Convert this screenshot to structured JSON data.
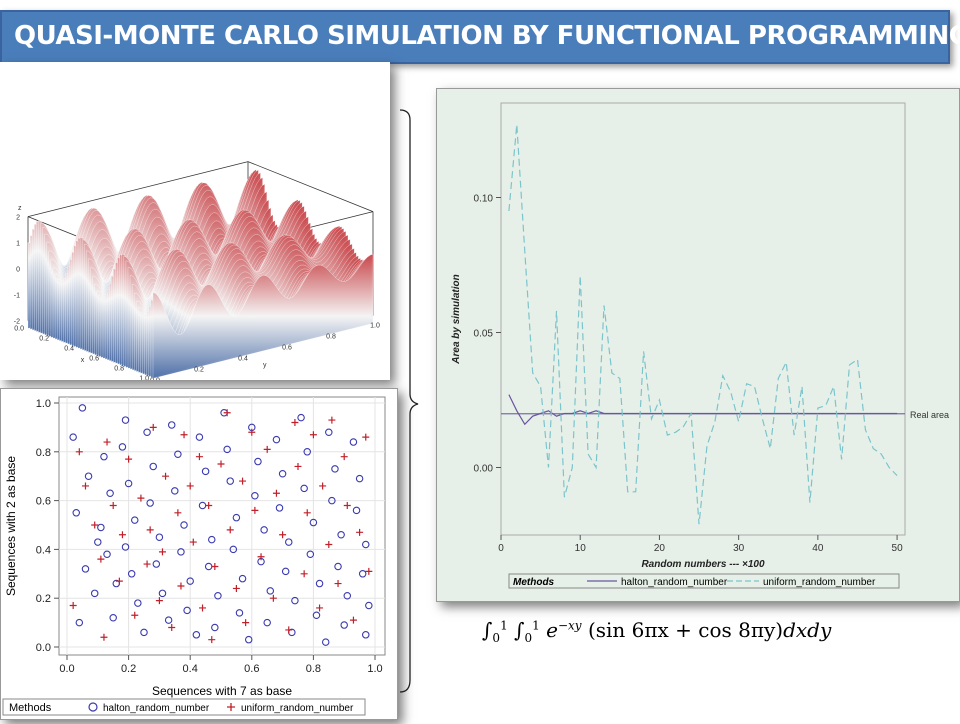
{
  "title": "QUASI-MONTE CARLO SIMULATION BY FUNCTIONAL PROGRAMMING",
  "formula_parts": {
    "lower": "0",
    "upper": "1",
    "exp_base": "e",
    "exp_power": "−xy",
    "body": "(sin 6πx + cos 8πy)",
    "tail": "dxdy"
  },
  "surface": {
    "z_label": "z",
    "x_label": "x",
    "y_label": "y",
    "z_ticks": [
      "2",
      "1",
      "0",
      "-1",
      "-2"
    ],
    "x_ticks": [
      "0.0",
      "0.2",
      "0.4",
      "0.6",
      "0.8",
      "1.0"
    ],
    "y_ticks": [
      "0.0",
      "0.2",
      "0.4",
      "0.6",
      "0.8",
      "1.0"
    ],
    "colors": {
      "high": "#c8464a",
      "mid": "#f4f4f4",
      "low": "#4e6fa8"
    }
  },
  "chart_data": [
    {
      "type": "scatter",
      "xlabel": "Sequences with 7 as base",
      "ylabel": "Sequences with 2 as base",
      "xlim": [
        0,
        1
      ],
      "ylim": [
        0,
        1
      ],
      "x_ticks": [
        "0.0",
        "0.2",
        "0.4",
        "0.6",
        "0.8",
        "1.0"
      ],
      "y_ticks": [
        "0.0",
        "0.2",
        "0.4",
        "0.6",
        "0.8",
        "1.0"
      ],
      "grid": true,
      "legend": {
        "title": "Methods",
        "placement": "bottom"
      },
      "series": [
        {
          "name": "halton_random_number",
          "marker": "circle",
          "color": "#3a3ab0",
          "points": [
            [
              0.05,
              0.98
            ],
            [
              0.02,
              0.86
            ],
            [
              0.07,
              0.7
            ],
            [
              0.03,
              0.55
            ],
            [
              0.1,
              0.43
            ],
            [
              0.06,
              0.32
            ],
            [
              0.09,
              0.22
            ],
            [
              0.04,
              0.1
            ],
            [
              0.12,
              0.78
            ],
            [
              0.14,
              0.63
            ],
            [
              0.11,
              0.49
            ],
            [
              0.13,
              0.38
            ],
            [
              0.16,
              0.26
            ],
            [
              0.15,
              0.12
            ],
            [
              0.19,
              0.93
            ],
            [
              0.18,
              0.82
            ],
            [
              0.2,
              0.67
            ],
            [
              0.22,
              0.52
            ],
            [
              0.19,
              0.41
            ],
            [
              0.21,
              0.3
            ],
            [
              0.23,
              0.18
            ],
            [
              0.25,
              0.06
            ],
            [
              0.26,
              0.88
            ],
            [
              0.28,
              0.74
            ],
            [
              0.27,
              0.59
            ],
            [
              0.3,
              0.45
            ],
            [
              0.29,
              0.34
            ],
            [
              0.31,
              0.22
            ],
            [
              0.33,
              0.11
            ],
            [
              0.34,
              0.91
            ],
            [
              0.36,
              0.79
            ],
            [
              0.35,
              0.64
            ],
            [
              0.38,
              0.5
            ],
            [
              0.37,
              0.39
            ],
            [
              0.4,
              0.27
            ],
            [
              0.39,
              0.15
            ],
            [
              0.42,
              0.05
            ],
            [
              0.43,
              0.86
            ],
            [
              0.45,
              0.72
            ],
            [
              0.44,
              0.58
            ],
            [
              0.47,
              0.44
            ],
            [
              0.46,
              0.33
            ],
            [
              0.49,
              0.21
            ],
            [
              0.48,
              0.08
            ],
            [
              0.51,
              0.96
            ],
            [
              0.52,
              0.81
            ],
            [
              0.53,
              0.68
            ],
            [
              0.55,
              0.53
            ],
            [
              0.54,
              0.4
            ],
            [
              0.57,
              0.28
            ],
            [
              0.56,
              0.14
            ],
            [
              0.59,
              0.03
            ],
            [
              0.6,
              0.9
            ],
            [
              0.62,
              0.76
            ],
            [
              0.61,
              0.62
            ],
            [
              0.64,
              0.48
            ],
            [
              0.63,
              0.35
            ],
            [
              0.66,
              0.23
            ],
            [
              0.65,
              0.1
            ],
            [
              0.68,
              0.85
            ],
            [
              0.7,
              0.71
            ],
            [
              0.69,
              0.57
            ],
            [
              0.72,
              0.43
            ],
            [
              0.71,
              0.31
            ],
            [
              0.74,
              0.19
            ],
            [
              0.73,
              0.06
            ],
            [
              0.76,
              0.94
            ],
            [
              0.78,
              0.8
            ],
            [
              0.77,
              0.65
            ],
            [
              0.8,
              0.51
            ],
            [
              0.79,
              0.38
            ],
            [
              0.82,
              0.26
            ],
            [
              0.81,
              0.13
            ],
            [
              0.84,
              0.02
            ],
            [
              0.85,
              0.88
            ],
            [
              0.87,
              0.73
            ],
            [
              0.86,
              0.6
            ],
            [
              0.89,
              0.46
            ],
            [
              0.88,
              0.33
            ],
            [
              0.91,
              0.21
            ],
            [
              0.9,
              0.09
            ],
            [
              0.93,
              0.84
            ],
            [
              0.95,
              0.69
            ],
            [
              0.94,
              0.56
            ],
            [
              0.97,
              0.42
            ],
            [
              0.96,
              0.3
            ],
            [
              0.98,
              0.17
            ],
            [
              0.97,
              0.05
            ]
          ]
        },
        {
          "name": "uniform_random_number",
          "marker": "plus",
          "color": "#c0202a",
          "points": [
            [
              0.04,
              0.8
            ],
            [
              0.06,
              0.66
            ],
            [
              0.02,
              0.17
            ],
            [
              0.09,
              0.5
            ],
            [
              0.11,
              0.36
            ],
            [
              0.13,
              0.84
            ],
            [
              0.15,
              0.58
            ],
            [
              0.12,
              0.04
            ],
            [
              0.17,
              0.27
            ],
            [
              0.18,
              0.46
            ],
            [
              0.2,
              0.77
            ],
            [
              0.22,
              0.13
            ],
            [
              0.24,
              0.61
            ],
            [
              0.26,
              0.34
            ],
            [
              0.28,
              0.9
            ],
            [
              0.27,
              0.48
            ],
            [
              0.3,
              0.19
            ],
            [
              0.32,
              0.7
            ],
            [
              0.31,
              0.39
            ],
            [
              0.34,
              0.08
            ],
            [
              0.36,
              0.55
            ],
            [
              0.38,
              0.87
            ],
            [
              0.37,
              0.25
            ],
            [
              0.4,
              0.66
            ],
            [
              0.41,
              0.43
            ],
            [
              0.44,
              0.16
            ],
            [
              0.43,
              0.78
            ],
            [
              0.46,
              0.58
            ],
            [
              0.48,
              0.33
            ],
            [
              0.47,
              0.03
            ],
            [
              0.5,
              0.75
            ],
            [
              0.52,
              0.96
            ],
            [
              0.53,
              0.48
            ],
            [
              0.55,
              0.24
            ],
            [
              0.57,
              0.68
            ],
            [
              0.58,
              0.1
            ],
            [
              0.6,
              0.88
            ],
            [
              0.61,
              0.56
            ],
            [
              0.63,
              0.37
            ],
            [
              0.65,
              0.81
            ],
            [
              0.67,
              0.2
            ],
            [
              0.68,
              0.63
            ],
            [
              0.7,
              0.46
            ],
            [
              0.72,
              0.07
            ],
            [
              0.74,
              0.92
            ],
            [
              0.75,
              0.74
            ],
            [
              0.77,
              0.3
            ],
            [
              0.78,
              0.55
            ],
            [
              0.8,
              0.87
            ],
            [
              0.82,
              0.16
            ],
            [
              0.83,
              0.66
            ],
            [
              0.85,
              0.42
            ],
            [
              0.86,
              0.93
            ],
            [
              0.88,
              0.26
            ],
            [
              0.9,
              0.78
            ],
            [
              0.91,
              0.58
            ],
            [
              0.93,
              0.11
            ],
            [
              0.95,
              0.47
            ],
            [
              0.97,
              0.86
            ],
            [
              0.98,
              0.31
            ]
          ]
        }
      ]
    },
    {
      "type": "line",
      "xlabel": "Random numbers --- ×100",
      "ylabel": "Area by simulation",
      "xlim": [
        0,
        51
      ],
      "ylim": [
        -0.025,
        0.135
      ],
      "x_ticks": [
        0,
        10,
        20,
        30,
        40,
        50
      ],
      "y_ticks": [
        "0.00",
        "0.05",
        "0.10"
      ],
      "y_tick_values": [
        0,
        0.05,
        0.1
      ],
      "reference_line": {
        "label": "Real area",
        "value": 0.0199
      },
      "legend": {
        "title": "Methods",
        "placement": "bottom"
      },
      "x": [
        1,
        2,
        3,
        4,
        5,
        6,
        7,
        8,
        9,
        10,
        11,
        12,
        13,
        14,
        15,
        16,
        17,
        18,
        19,
        20,
        21,
        22,
        23,
        24,
        25,
        26,
        27,
        28,
        29,
        30,
        31,
        32,
        33,
        34,
        35,
        36,
        37,
        38,
        39,
        40,
        41,
        42,
        43,
        44,
        45,
        46,
        47,
        48,
        49,
        50
      ],
      "series": [
        {
          "name": "halton_random_number",
          "style": "solid",
          "color": "#6a55a0",
          "values": [
            0.027,
            0.021,
            0.016,
            0.019,
            0.02,
            0.021,
            0.019,
            0.02,
            0.02,
            0.021,
            0.02,
            0.021,
            0.02,
            0.02,
            0.02,
            0.02,
            0.02,
            0.02,
            0.02,
            0.02,
            0.02,
            0.02,
            0.02,
            0.02,
            0.02,
            0.02,
            0.02,
            0.02,
            0.02,
            0.02,
            0.02,
            0.02,
            0.02,
            0.02,
            0.02,
            0.02,
            0.02,
            0.02,
            0.02,
            0.02,
            0.02,
            0.02,
            0.02,
            0.02,
            0.02,
            0.02,
            0.02,
            0.02,
            0.02,
            0.02
          ]
        },
        {
          "name": "uniform_random_number",
          "style": "dashed",
          "color": "#7cc4cc",
          "values": [
            0.095,
            0.127,
            0.08,
            0.035,
            0.03,
            0.0,
            0.058,
            -0.011,
            0.0,
            0.071,
            0.005,
            0.0,
            0.06,
            0.035,
            0.033,
            -0.009,
            -0.009,
            0.043,
            0.018,
            0.025,
            0.012,
            0.013,
            0.015,
            0.02,
            -0.021,
            0.008,
            0.017,
            0.034,
            0.028,
            0.017,
            0.031,
            0.03,
            0.018,
            0.007,
            0.033,
            0.039,
            0.012,
            0.03,
            -0.013,
            0.022,
            0.023,
            0.03,
            0.003,
            0.038,
            0.04,
            0.014,
            0.007,
            0.005,
            0.0,
            -0.003
          ]
        }
      ]
    }
  ]
}
